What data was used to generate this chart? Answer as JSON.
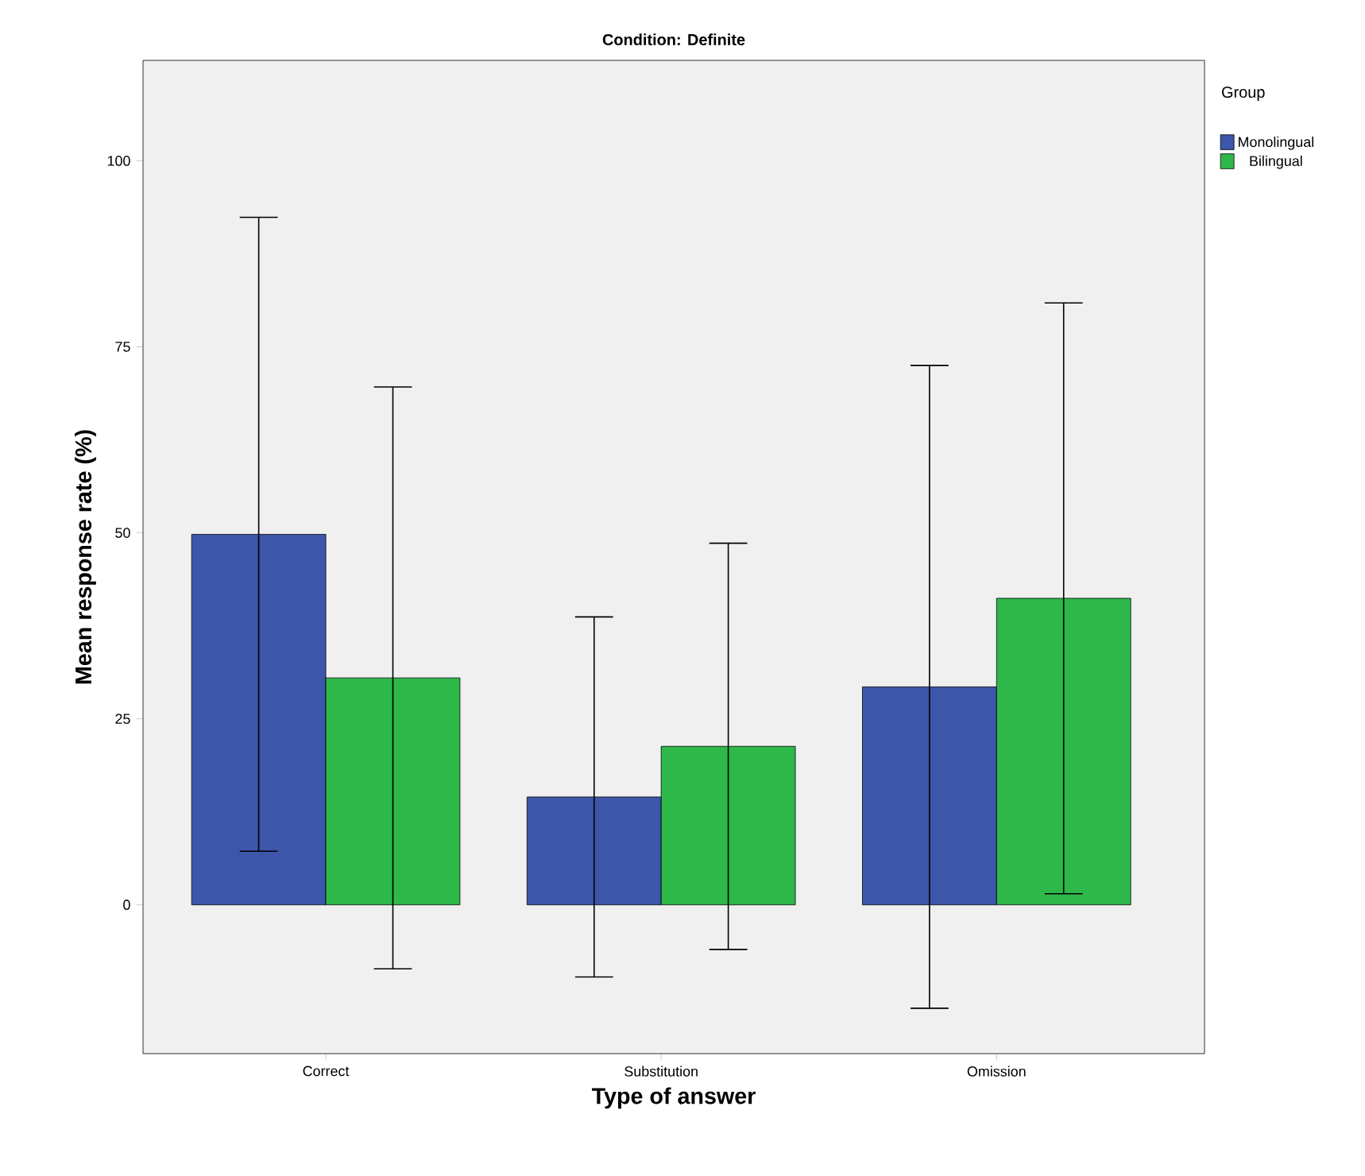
{
  "chart_data": {
    "type": "bar",
    "title": "Condition: Definite",
    "xlabel": "Type of answer",
    "ylabel": "Mean response rate (%)",
    "legend_title": "Group",
    "categories": [
      "Correct",
      "Substitution",
      "Omission"
    ],
    "series": [
      {
        "name": "Monolingual",
        "color": "#3c56a9",
        "values": [
          49.8,
          14.5,
          29.3
        ],
        "errors": [
          42.6,
          24.2,
          43.2
        ]
      },
      {
        "name": "Bilingual",
        "color": "#2eb84a",
        "values": [
          30.5,
          21.3,
          41.2
        ],
        "errors": [
          39.1,
          27.3,
          39.7
        ]
      }
    ],
    "ylim": [
      -20,
      113.5
    ],
    "yticks": [
      0,
      25,
      50,
      75,
      100
    ],
    "legend": "right",
    "grid": false
  }
}
